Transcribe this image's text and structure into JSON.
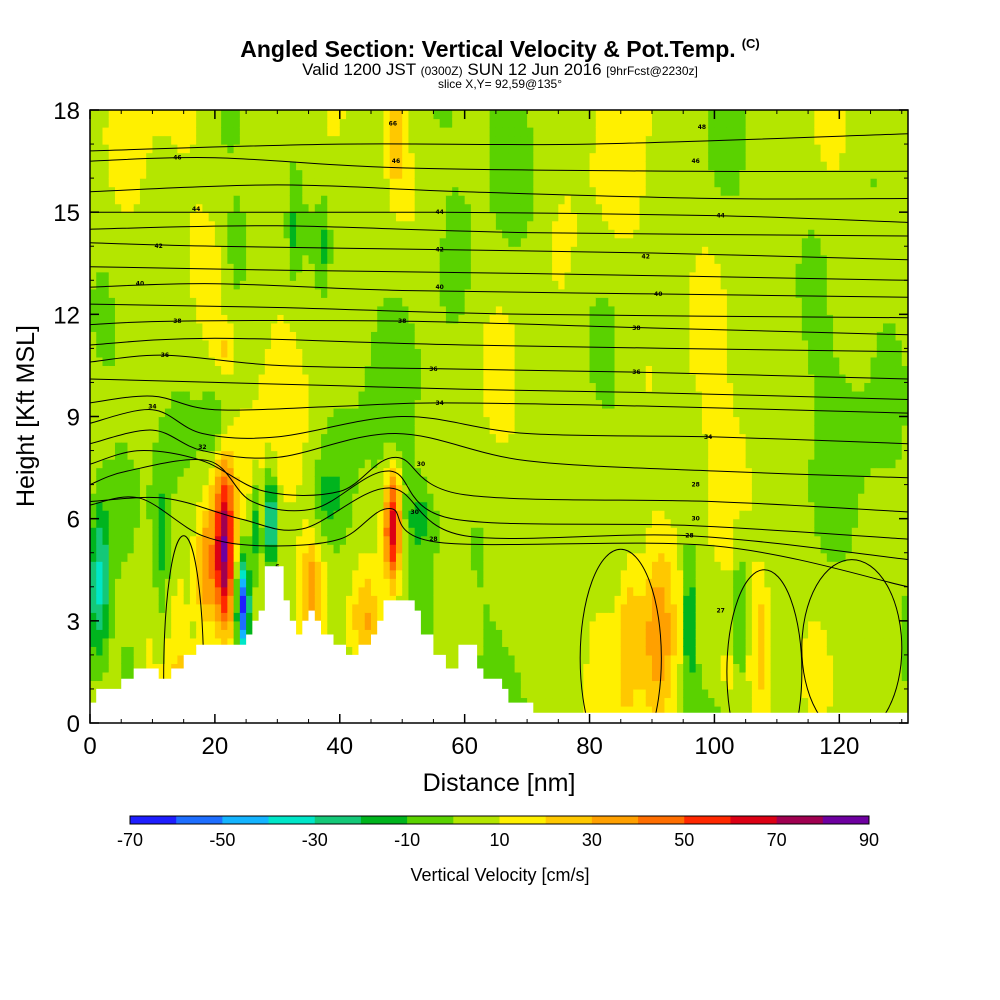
{
  "chart_data": {
    "type": "heatmap",
    "title": "Angled Section: Vertical Velocity & Pot.Temp.",
    "title_tag": "(C)",
    "subtitle_main": "Valid 1200 JST",
    "subtitle_utc": "(0300Z)",
    "subtitle_date": "SUN 12 Jun 2016",
    "subtitle_fcst": "[9hrFcst@2230z]",
    "slice_text": "slice X,Y= 92,59@135°",
    "xlabel": "Distance [nm]",
    "ylabel": "Height [Kft MSL]",
    "xlim": [
      0,
      131
    ],
    "ylim": [
      0,
      18
    ],
    "x_ticks": [
      0,
      20,
      40,
      60,
      80,
      100,
      120
    ],
    "y_ticks": [
      0,
      3,
      6,
      9,
      12,
      15,
      18
    ],
    "colorbar": {
      "label": "Vertical Velocity [cm/s]",
      "boundaries": [
        -70,
        -60,
        -50,
        -40,
        -30,
        -20,
        -10,
        0,
        10,
        20,
        30,
        40,
        50,
        60,
        70,
        80,
        90
      ],
      "tick_labels": [
        "-70",
        "-50",
        "-30",
        "-10",
        "10",
        "30",
        "50",
        "70",
        "90"
      ],
      "colors": [
        "#1e1eff",
        "#1e6eff",
        "#14b4ff",
        "#00e6c8",
        "#14c878",
        "#00b41e",
        "#5ad200",
        "#b4e600",
        "#fff000",
        "#ffc800",
        "#ffa000",
        "#ff6e00",
        "#ff2800",
        "#dc0014",
        "#a00050",
        "#6e00a0"
      ]
    },
    "background_value": 5,
    "terrain_kft": [
      [
        0,
        0.6
      ],
      [
        1,
        0.6
      ],
      [
        1,
        1.0
      ],
      [
        5,
        1.0
      ],
      [
        5,
        1.3
      ],
      [
        7,
        1.3
      ],
      [
        7,
        1.6
      ],
      [
        11,
        1.6
      ],
      [
        11,
        1.3
      ],
      [
        13,
        1.3
      ],
      [
        13,
        1.6
      ],
      [
        15,
        1.6
      ],
      [
        15,
        2.0
      ],
      [
        17,
        2.0
      ],
      [
        17,
        2.3
      ],
      [
        25,
        2.3
      ],
      [
        25,
        2.6
      ],
      [
        26,
        2.6
      ],
      [
        26,
        3.0
      ],
      [
        27,
        3.0
      ],
      [
        27,
        3.3
      ],
      [
        28,
        3.3
      ],
      [
        28,
        4.6
      ],
      [
        31,
        4.6
      ],
      [
        31,
        3.6
      ],
      [
        32,
        3.6
      ],
      [
        32,
        3.0
      ],
      [
        33,
        3.0
      ],
      [
        33,
        2.6
      ],
      [
        34,
        2.6
      ],
      [
        34,
        3.0
      ],
      [
        35,
        3.0
      ],
      [
        35,
        3.3
      ],
      [
        36,
        3.3
      ],
      [
        36,
        3.0
      ],
      [
        37,
        3.0
      ],
      [
        37,
        2.6
      ],
      [
        39,
        2.6
      ],
      [
        39,
        2.3
      ],
      [
        41,
        2.3
      ],
      [
        41,
        2.0
      ],
      [
        43,
        2.0
      ],
      [
        43,
        2.3
      ],
      [
        45,
        2.3
      ],
      [
        45,
        2.6
      ],
      [
        46,
        2.6
      ],
      [
        46,
        3.0
      ],
      [
        47,
        3.0
      ],
      [
        47,
        3.6
      ],
      [
        52,
        3.6
      ],
      [
        52,
        3.3
      ],
      [
        53,
        3.3
      ],
      [
        53,
        2.6
      ],
      [
        55,
        2.6
      ],
      [
        55,
        2.0
      ],
      [
        57,
        2.0
      ],
      [
        57,
        1.6
      ],
      [
        59,
        1.6
      ],
      [
        59,
        2.3
      ],
      [
        62,
        2.3
      ],
      [
        62,
        1.6
      ],
      [
        63,
        1.6
      ],
      [
        63,
        1.3
      ],
      [
        66,
        1.3
      ],
      [
        66,
        1.0
      ],
      [
        67,
        1.0
      ],
      [
        67,
        0.6
      ],
      [
        71,
        0.6
      ],
      [
        71,
        0.3
      ],
      [
        131,
        0.3
      ]
    ],
    "updraft_cores": [
      {
        "x": 21.5,
        "z": 5.0,
        "dx": 1.6,
        "dz": 2.4,
        "w": 70
      },
      {
        "x": 48.5,
        "z": 5.8,
        "dx": 1.3,
        "dz": 1.6,
        "w": 65
      },
      {
        "x": 18.5,
        "z": 4.5,
        "dx": 1.5,
        "dz": 1.8,
        "w": 30
      },
      {
        "x": 35.5,
        "z": 4.0,
        "dx": 1.8,
        "dz": 1.5,
        "w": 28
      },
      {
        "x": 44.0,
        "z": 3.0,
        "dx": 2.2,
        "dz": 1.4,
        "w": 25
      },
      {
        "x": 91.0,
        "z": 2.5,
        "dx": 2.4,
        "dz": 2.5,
        "w": 28
      },
      {
        "x": 86.5,
        "z": 2.8,
        "dx": 1.8,
        "dz": 2.2,
        "w": 20
      },
      {
        "x": 107.5,
        "z": 2.5,
        "dx": 1.6,
        "dz": 2.2,
        "w": 25
      },
      {
        "x": 49.0,
        "z": 17.0,
        "dx": 1.5,
        "dz": 1.5,
        "w": 20
      },
      {
        "x": 21.5,
        "z": 11.0,
        "dx": 1.2,
        "dz": 0.6,
        "w": 15
      },
      {
        "x": 15.0,
        "z": 1.5,
        "dx": 2.0,
        "dz": 0.8,
        "w": 15
      },
      {
        "x": 102.0,
        "z": 1.5,
        "dx": 3.0,
        "dz": 1.0,
        "w": 14
      }
    ],
    "downdraft_cores": [
      {
        "x": 24.5,
        "z": 3.5,
        "dx": 1.0,
        "dz": 1.5,
        "w": -70
      },
      {
        "x": 29.0,
        "z": 6.0,
        "dx": 0.8,
        "dz": 1.4,
        "w": -45
      },
      {
        "x": 1.5,
        "z": 4.0,
        "dx": 1.8,
        "dz": 2.5,
        "w": -38
      },
      {
        "x": 11.5,
        "z": 5.0,
        "dx": 1.5,
        "dz": 2.5,
        "w": -22
      },
      {
        "x": 26.5,
        "z": 5.8,
        "dx": 0.8,
        "dz": 1.2,
        "w": -25
      },
      {
        "x": 96.0,
        "z": 3.0,
        "dx": 0.9,
        "dz": 2.2,
        "w": -28
      },
      {
        "x": 104.0,
        "z": 3.0,
        "dx": 0.8,
        "dz": 2.5,
        "w": -20
      },
      {
        "x": 20.0,
        "z": 8.8,
        "dx": 2.5,
        "dz": 1.2,
        "w": -18
      },
      {
        "x": 23.5,
        "z": 14.0,
        "dx": 1.5,
        "dz": 1.2,
        "w": -15
      },
      {
        "x": 37.5,
        "z": 14.0,
        "dx": 1.0,
        "dz": 1.3,
        "w": -14
      },
      {
        "x": 32.5,
        "z": 14.5,
        "dx": 1.0,
        "dz": 1.5,
        "w": -14
      },
      {
        "x": 6.0,
        "z": 1.5,
        "dx": 2.0,
        "dz": 1.0,
        "w": -16
      },
      {
        "x": 53.0,
        "z": 6.0,
        "dx": 2.5,
        "dz": 1.0,
        "w": -16
      },
      {
        "x": 38.0,
        "z": 6.5,
        "dx": 2.5,
        "dz": 1.2,
        "w": -14
      }
    ],
    "isentropes_kft": [
      {
        "theta": 66,
        "pts": [
          [
            0,
            16.8
          ],
          [
            40,
            17.0
          ],
          [
            80,
            17.0
          ],
          [
            131,
            17.3
          ]
        ]
      },
      {
        "theta": 48,
        "pts": [
          [
            0,
            16.5
          ],
          [
            20,
            16.6
          ],
          [
            50,
            16.3
          ],
          [
            96,
            16.2
          ],
          [
            131,
            16.2
          ]
        ]
      },
      {
        "theta": 46,
        "pts": [
          [
            0,
            15.6
          ],
          [
            30,
            15.8
          ],
          [
            60,
            15.6
          ],
          [
            100,
            15.4
          ],
          [
            131,
            15.4
          ]
        ]
      },
      {
        "theta": 44,
        "pts": [
          [
            0,
            15.0
          ],
          [
            20,
            15.0
          ],
          [
            56,
            15.0
          ],
          [
            100,
            14.9
          ],
          [
            131,
            14.7
          ]
        ]
      },
      {
        "theta": 43,
        "pts": [
          [
            0,
            14.5
          ],
          [
            30,
            14.6
          ],
          [
            70,
            14.4
          ],
          [
            131,
            14.3
          ]
        ]
      },
      {
        "theta": 42,
        "pts": [
          [
            0,
            14.1
          ],
          [
            20,
            14.0
          ],
          [
            56,
            13.9
          ],
          [
            90,
            13.8
          ],
          [
            131,
            13.6
          ]
        ]
      },
      {
        "theta": 41,
        "pts": [
          [
            0,
            13.4
          ],
          [
            30,
            13.3
          ],
          [
            70,
            13.2
          ],
          [
            131,
            13.0
          ]
        ]
      },
      {
        "theta": 40,
        "pts": [
          [
            0,
            12.8
          ],
          [
            20,
            12.9
          ],
          [
            50,
            12.7
          ],
          [
            90,
            12.6
          ],
          [
            131,
            12.5
          ]
        ]
      },
      {
        "theta": 39,
        "pts": [
          [
            0,
            12.3
          ],
          [
            30,
            12.2
          ],
          [
            70,
            12.0
          ],
          [
            131,
            11.9
          ]
        ]
      },
      {
        "theta": 38,
        "pts": [
          [
            0,
            11.7
          ],
          [
            14,
            11.8
          ],
          [
            50,
            11.8
          ],
          [
            90,
            11.6
          ],
          [
            131,
            11.4
          ]
        ]
      },
      {
        "theta": 37,
        "pts": [
          [
            0,
            11.1
          ],
          [
            20,
            11.3
          ],
          [
            60,
            11.1
          ],
          [
            131,
            10.9
          ]
        ]
      },
      {
        "theta": 36,
        "pts": [
          [
            0,
            10.6
          ],
          [
            12,
            10.8
          ],
          [
            30,
            10.5
          ],
          [
            56,
            10.4
          ],
          [
            88,
            10.3
          ],
          [
            131,
            10.1
          ]
        ]
      },
      {
        "theta": 35,
        "pts": [
          [
            0,
            10.1
          ],
          [
            20,
            10.0
          ],
          [
            40,
            9.9
          ],
          [
            60,
            9.8
          ],
          [
            90,
            9.7
          ],
          [
            131,
            9.5
          ]
        ]
      },
      {
        "theta": 34,
        "pts": [
          [
            0,
            9.4
          ],
          [
            10,
            9.6
          ],
          [
            20,
            9.2
          ],
          [
            40,
            9.3
          ],
          [
            56,
            9.4
          ],
          [
            90,
            9.3
          ],
          [
            131,
            9.1
          ]
        ]
      },
      {
        "theta": 33,
        "pts": [
          [
            0,
            8.8
          ],
          [
            10,
            9.2
          ],
          [
            18,
            8.5
          ],
          [
            30,
            8.4
          ],
          [
            50,
            9.0
          ],
          [
            70,
            8.5
          ],
          [
            100,
            8.4
          ],
          [
            131,
            8.2
          ]
        ]
      },
      {
        "theta": 32,
        "pts": [
          [
            0,
            8.2
          ],
          [
            10,
            8.6
          ],
          [
            18,
            8.0
          ],
          [
            30,
            7.8
          ],
          [
            49,
            8.5
          ],
          [
            70,
            7.7
          ],
          [
            100,
            7.4
          ],
          [
            131,
            7.2
          ]
        ]
      },
      {
        "theta": 31,
        "pts": [
          [
            0,
            7.6
          ],
          [
            8,
            8.0
          ],
          [
            18,
            7.7
          ],
          [
            28,
            6.8
          ],
          [
            40,
            6.8
          ],
          [
            49,
            7.8
          ],
          [
            60,
            6.7
          ],
          [
            100,
            6.5
          ],
          [
            131,
            6.2
          ]
        ]
      },
      {
        "theta": 30,
        "pts": [
          [
            0,
            7.0
          ],
          [
            6,
            7.4
          ],
          [
            19,
            7.7
          ],
          [
            26,
            6.5
          ],
          [
            36,
            6.3
          ],
          [
            48,
            7.4
          ],
          [
            58,
            6.0
          ],
          [
            96,
            5.8
          ],
          [
            131,
            5.4
          ]
        ]
      },
      {
        "theta": 29,
        "pts": [
          [
            0,
            6.5
          ],
          [
            12,
            6.6
          ],
          [
            24,
            6.0
          ],
          [
            34,
            5.7
          ],
          [
            48,
            6.9
          ],
          [
            60,
            5.5
          ],
          [
            96,
            5.5
          ],
          [
            131,
            4.8
          ]
        ]
      },
      {
        "theta": 28,
        "pts": [
          [
            0,
            6.4
          ],
          [
            8,
            6.6
          ],
          [
            18,
            5.5
          ],
          [
            28,
            5.2
          ],
          [
            40,
            5.4
          ],
          [
            48,
            6.3
          ],
          [
            56,
            5.3
          ],
          [
            100,
            5.2
          ],
          [
            131,
            4.0
          ]
        ]
      }
    ],
    "isentrope_labels": [
      {
        "x": 48.5,
        "z": 17.6,
        "text": "66"
      },
      {
        "x": 98,
        "z": 17.5,
        "text": "48"
      },
      {
        "x": 14,
        "z": 16.6,
        "text": "46"
      },
      {
        "x": 49,
        "z": 16.5,
        "text": "46"
      },
      {
        "x": 97,
        "z": 16.5,
        "text": "46"
      },
      {
        "x": 17,
        "z": 15.1,
        "text": "44"
      },
      {
        "x": 56,
        "z": 15.0,
        "text": "44"
      },
      {
        "x": 101,
        "z": 14.9,
        "text": "44"
      },
      {
        "x": 11,
        "z": 14.0,
        "text": "42"
      },
      {
        "x": 56,
        "z": 13.9,
        "text": "42"
      },
      {
        "x": 89,
        "z": 13.7,
        "text": "42"
      },
      {
        "x": 8,
        "z": 12.9,
        "text": "40"
      },
      {
        "x": 56,
        "z": 12.8,
        "text": "40"
      },
      {
        "x": 91,
        "z": 12.6,
        "text": "40"
      },
      {
        "x": 14,
        "z": 11.8,
        "text": "38"
      },
      {
        "x": 50,
        "z": 11.8,
        "text": "38"
      },
      {
        "x": 87.5,
        "z": 11.6,
        "text": "38"
      },
      {
        "x": 12,
        "z": 10.8,
        "text": "36"
      },
      {
        "x": 55,
        "z": 10.4,
        "text": "36"
      },
      {
        "x": 87.5,
        "z": 10.3,
        "text": "36"
      },
      {
        "x": 10,
        "z": 9.3,
        "text": "34"
      },
      {
        "x": 56,
        "z": 9.4,
        "text": "34"
      },
      {
        "x": 18,
        "z": 8.1,
        "text": "32"
      },
      {
        "x": 99,
        "z": 8.4,
        "text": "34"
      },
      {
        "x": 53,
        "z": 7.6,
        "text": "30"
      },
      {
        "x": 97,
        "z": 7.0,
        "text": "28"
      },
      {
        "x": 52,
        "z": 6.2,
        "text": "30"
      },
      {
        "x": 97,
        "z": 6.0,
        "text": "30"
      },
      {
        "x": 55,
        "z": 5.4,
        "text": "28"
      },
      {
        "x": 96,
        "z": 5.5,
        "text": "28"
      },
      {
        "x": 30,
        "z": 4.6,
        "text": "6"
      },
      {
        "x": 101,
        "z": 3.3,
        "text": "27"
      }
    ]
  }
}
